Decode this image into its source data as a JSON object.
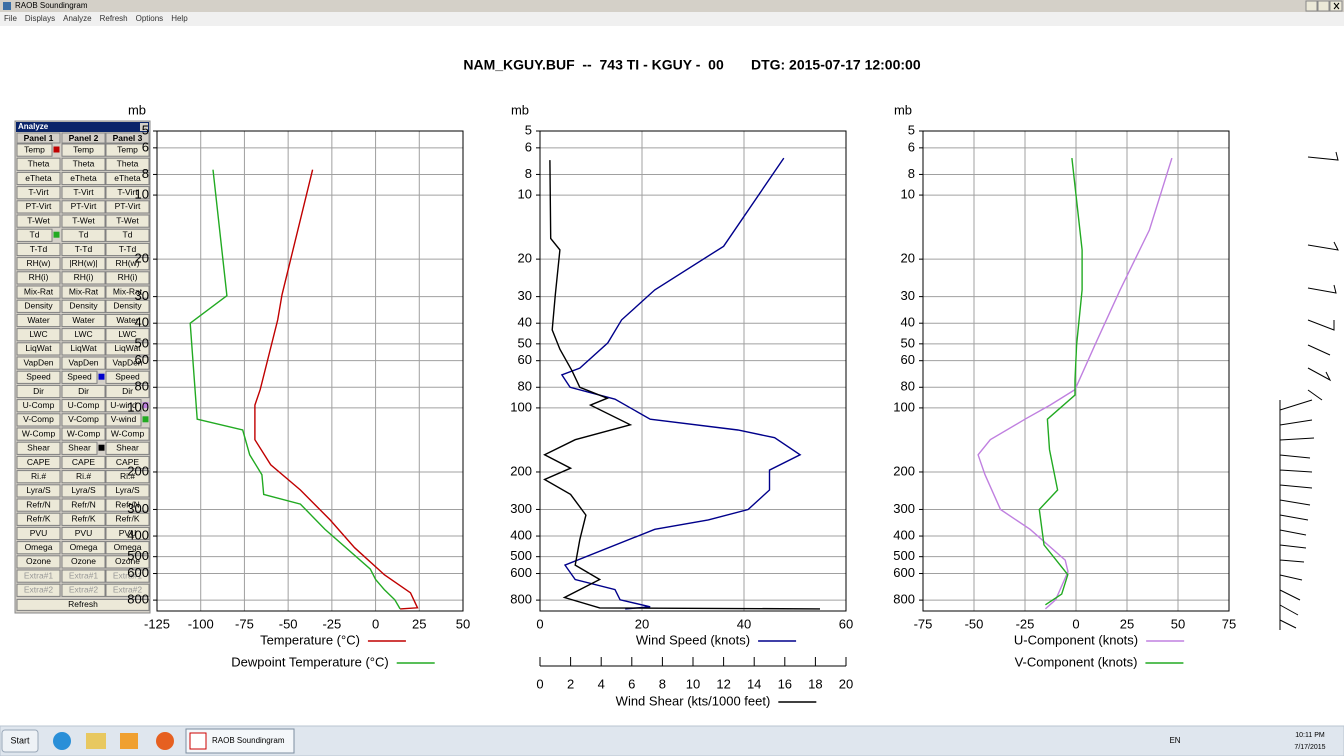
{
  "window": {
    "title": "RAOB Soundingram",
    "menu": [
      "File",
      "Displays",
      "Analyze",
      "Refresh",
      "Options",
      "Help"
    ]
  },
  "header": {
    "title": "NAM_KGUY.BUF  --  743 TI - KGUY -  00       DTG: 2015-07-17 12:00:00"
  },
  "analyze": {
    "title": "Analyze",
    "panels": [
      "Panel 1",
      "Panel 2",
      "Panel 3"
    ],
    "rows": [
      [
        "Temp",
        "Temp",
        "Temp"
      ],
      [
        "Theta",
        "Theta",
        "Theta"
      ],
      [
        "eTheta",
        "eTheta",
        "eTheta"
      ],
      [
        "T-Virt",
        "T-Virt",
        "T-Virt"
      ],
      [
        "PT-Virt",
        "PT-Virt",
        "PT-Virt"
      ],
      [
        "T-Wet",
        "T-Wet",
        "T-Wet"
      ],
      [
        "Td",
        "Td",
        "Td"
      ],
      [
        "T-Td",
        "T-Td",
        "T-Td"
      ],
      [
        "RH(w)",
        "|RH(w)|",
        "RH(w)"
      ],
      [
        "RH(i)",
        "RH(i)",
        "RH(i)"
      ],
      [
        "Mix-Rat",
        "Mix-Rat",
        "Mix-Rat"
      ],
      [
        "Density",
        "Density",
        "Density"
      ],
      [
        "Water",
        "Water",
        "Water"
      ],
      [
        "LWC",
        "LWC",
        "LWC"
      ],
      [
        "LiqWat",
        "LiqWat",
        "LiqWat"
      ],
      [
        "VapDen",
        "VapDen",
        "VapDen"
      ],
      [
        "Speed",
        "Speed",
        "Speed"
      ],
      [
        "Dir",
        "Dir",
        "Dir"
      ],
      [
        "U-Comp",
        "U-Comp",
        "U-wind"
      ],
      [
        "V-Comp",
        "V-Comp",
        "V-wind"
      ],
      [
        "W-Comp",
        "W-Comp",
        "W-Comp"
      ],
      [
        "Shear",
        "Shear",
        "Shear"
      ],
      [
        "CAPE",
        "CAPE",
        "CAPE"
      ],
      [
        "Ri.#",
        "Ri.#",
        "Ri.#"
      ],
      [
        "Lyra/S",
        "Lyra/S",
        "Lyra/S"
      ],
      [
        "Refr/N",
        "Refr/N",
        "Refr/N"
      ],
      [
        "Refr/K",
        "Refr/K",
        "Refr/K"
      ],
      [
        "PVU",
        "PVU",
        "PVU"
      ],
      [
        "Omega",
        "Omega",
        "Omega"
      ],
      [
        "Ozone",
        "Ozone",
        "Ozone"
      ],
      [
        "Extra#1",
        "Extra#1",
        "Extra#1"
      ],
      [
        "Extra#2",
        "Extra#2",
        "Extra#2"
      ]
    ],
    "disabled_rows": [
      30,
      31
    ],
    "markers": [
      {
        "row": 0,
        "panel": 0,
        "color": "#c00000"
      },
      {
        "row": 6,
        "panel": 0,
        "color": "#22aa22"
      },
      {
        "row": 16,
        "panel": 1,
        "color": "#0000cc"
      },
      {
        "row": 18,
        "panel": 2,
        "color": "#c080e0"
      },
      {
        "row": 19,
        "panel": 2,
        "color": "#22aa22"
      },
      {
        "row": 21,
        "panel": 1,
        "color": "#000000"
      }
    ],
    "refresh": "Refresh"
  },
  "chart_data": [
    {
      "type": "line",
      "y_label": "mb",
      "ylog": true,
      "y_inverted": true,
      "grid": true,
      "ylim": [
        5,
        900
      ],
      "yticks": [
        5,
        6,
        8,
        10,
        20,
        30,
        40,
        50,
        60,
        80,
        100,
        200,
        300,
        400,
        500,
        600,
        800
      ],
      "xlim": [
        -125,
        50
      ],
      "xticks": [
        -125,
        -100,
        -75,
        -50,
        -25,
        0,
        25,
        50
      ],
      "series": [
        {
          "name": "Temperature (°C)",
          "color": "#c00000",
          "x": [
            -36,
            -53.5,
            -56,
            -66,
            -69,
            -69,
            -60,
            -43,
            -26,
            -12,
            5,
            20,
            24,
            14
          ],
          "values": [
            7.6,
            29.4,
            38.6,
            82,
            97,
            141,
            185,
            243,
            336,
            454,
            608,
            739,
            869,
            880
          ]
        },
        {
          "name": "Dewpoint Temperature (°C)",
          "color": "#22aa22",
          "x": [
            -93,
            -85,
            -106,
            -102,
            -76,
            -72,
            -65,
            -64,
            -43,
            -29,
            -3,
            0,
            5,
            11,
            14
          ],
          "values": [
            7.6,
            29.7,
            40,
            113,
            127,
            166,
            206,
            255,
            283,
            372,
            572,
            640,
            714,
            797,
            880
          ]
        }
      ]
    },
    {
      "type": "line",
      "y_label": "mb",
      "ylog": true,
      "y_inverted": true,
      "grid": true,
      "ylim": [
        5,
        900
      ],
      "yticks": [
        5,
        6,
        8,
        10,
        20,
        30,
        40,
        50,
        60,
        80,
        100,
        200,
        300,
        400,
        500,
        600,
        800
      ],
      "xlim": [
        0,
        60
      ],
      "xticks": [
        0,
        20,
        40,
        60
      ],
      "x2lim": [
        0,
        20
      ],
      "x2ticks": [
        0,
        2,
        4,
        6,
        8,
        10,
        12,
        14,
        16,
        18,
        20
      ],
      "series": [
        {
          "name": "Wind Speed (knots)",
          "color": "#00008b",
          "x": [
            47.8,
            36,
            22.5,
            16,
            13.3,
            7.8,
            4.3,
            5.9,
            14.7,
            21.6,
            38.8,
            46,
            51,
            45,
            45,
            40.8,
            33,
            22.5,
            4.9,
            6.9,
            14.7,
            15.7,
            21.6,
            16.7
          ],
          "values": [
            6.7,
            17.4,
            27.9,
            38.6,
            49.5,
            65,
            70,
            80,
            91,
            113,
            127,
            138,
            166,
            196,
            243,
            300,
            336,
            372,
            548,
            640,
            714,
            797,
            860,
            880
          ]
        },
        {
          "name": "Wind Shear (kts/1000 feet)",
          "color": "#000000",
          "axis": "x2",
          "x": [
            0.65,
            0.7,
            1.3,
            1,
            0.8,
            1.3,
            2.1,
            2.6,
            4.4,
            3.3,
            5.9,
            3.6,
            2.3,
            0.3,
            2,
            0.3,
            2,
            3,
            2.6,
            2.3,
            3.9,
            1.6,
            3.9,
            18.3
          ],
          "values": [
            6.85,
            16,
            18.1,
            29.4,
            43,
            53,
            67,
            80,
            90,
            97,
            120,
            133,
            141,
            166,
            192,
            217,
            255,
            319,
            416,
            548,
            640,
            778,
            870,
            880
          ]
        }
      ]
    },
    {
      "type": "line",
      "y_label": "mb",
      "ylog": true,
      "y_inverted": true,
      "grid": true,
      "ylim": [
        5,
        900
      ],
      "yticks": [
        5,
        6,
        8,
        10,
        20,
        30,
        40,
        50,
        60,
        80,
        100,
        200,
        300,
        400,
        500,
        600,
        800
      ],
      "xlim": [
        -75,
        75
      ],
      "xticks": [
        -75,
        -50,
        -25,
        0,
        25,
        50,
        75
      ],
      "series": [
        {
          "name": "U-Component (knots)",
          "color": "#c080e0",
          "x": [
            47,
            36,
            21.6,
            9.3,
            -0.5,
            -12.7,
            -25,
            -42,
            -48,
            -44.6,
            -37,
            -22.5,
            -5.3,
            -3.9,
            -7.8,
            -10,
            -15
          ],
          "values": [
            6.7,
            14.6,
            27.9,
            50.5,
            82,
            97,
            113,
            141,
            166,
            206,
            300,
            372,
            519,
            588,
            714,
            797,
            880
          ]
        },
        {
          "name": "V-Component (knots)",
          "color": "#22aa22",
          "x": [
            -2,
            3,
            3,
            0.3,
            -0.5,
            -0.5,
            -14,
            -13,
            -9,
            -18,
            -15.7,
            -4,
            -7,
            -15
          ],
          "values": [
            6.7,
            18.1,
            27.9,
            50.5,
            74,
            87,
            113,
            157,
            243,
            300,
            440,
            608,
            750,
            842
          ]
        }
      ]
    }
  ],
  "taskbar": {
    "start": "Start",
    "task": "RAOB Soundingram",
    "language": "EN",
    "time": "10:11 PM",
    "date": "7/17/2015"
  }
}
